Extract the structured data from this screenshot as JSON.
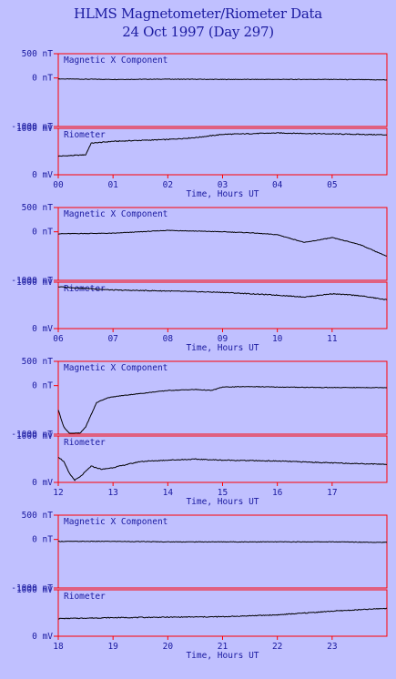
{
  "header": {
    "title": "HLMS Magnetometer/Riometer Data",
    "subtitle": "24 Oct 1997 (Day 297)"
  },
  "colors": {
    "background": "#c0c0ff",
    "frame": "#ff0000",
    "text": "#1a1aa0",
    "trace": "#000000"
  },
  "chart_data": [
    {
      "type": "line",
      "title": "Magnetic X Component",
      "ylim": [
        -1000,
        500
      ],
      "yticks": [
        "500 nT",
        "0 nT",
        "-1000 nT"
      ],
      "xlim": [
        0,
        6
      ],
      "xticks": [
        "00",
        "01",
        "02",
        "03",
        "04",
        "05"
      ],
      "xlabel": "",
      "x": [
        0,
        1,
        2,
        3,
        4,
        5,
        5.99
      ],
      "y": [
        -20,
        -30,
        -25,
        -30,
        -30,
        -30,
        -40
      ]
    },
    {
      "type": "line",
      "title": "Riometer",
      "ylim": [
        0,
        1000
      ],
      "yticks": [
        "1000 mV",
        "0 mV"
      ],
      "xlim": [
        0,
        6
      ],
      "xticks": [
        "00",
        "01",
        "02",
        "03",
        "04",
        "05"
      ],
      "xlabel": "Time, Hours UT",
      "x": [
        0,
        0.5,
        0.6,
        1,
        2,
        2.5,
        3,
        4,
        5,
        5.99
      ],
      "y": [
        400,
        430,
        680,
        720,
        760,
        800,
        870,
        900,
        880,
        860
      ]
    },
    {
      "type": "line",
      "title": "Magnetic X Component",
      "ylim": [
        -1000,
        500
      ],
      "yticks": [
        "500 nT",
        "0 nT",
        "-1000 nT"
      ],
      "xlim": [
        6,
        12
      ],
      "xticks": [
        "06",
        "07",
        "08",
        "09",
        "10",
        "11"
      ],
      "xlabel": "",
      "x": [
        6,
        7,
        8,
        9,
        9.5,
        10,
        10.5,
        11,
        11.5,
        11.99
      ],
      "y": [
        -40,
        -30,
        30,
        0,
        -20,
        -60,
        -220,
        -120,
        -260,
        -500
      ]
    },
    {
      "type": "line",
      "title": "Riometer",
      "ylim": [
        0,
        1000
      ],
      "yticks": [
        "1000 mV",
        "0 mV"
      ],
      "xlim": [
        6,
        12
      ],
      "xticks": [
        "06",
        "07",
        "08",
        "09",
        "10",
        "11"
      ],
      "xlabel": "Time, Hours UT",
      "x": [
        6,
        7,
        8,
        9,
        10,
        10.5,
        11,
        11.5,
        11.99
      ],
      "y": [
        900,
        830,
        810,
        780,
        720,
        680,
        750,
        710,
        620
      ]
    },
    {
      "type": "line",
      "title": "Magnetic X Component",
      "ylim": [
        -1000,
        500
      ],
      "yticks": [
        "500 nT",
        "0 nT",
        "-1000 nT"
      ],
      "xlim": [
        12,
        18
      ],
      "xticks": [
        "12",
        "13",
        "14",
        "15",
        "16",
        "17"
      ],
      "xlabel": "",
      "x": [
        12,
        12.1,
        12.2,
        12.4,
        12.5,
        12.7,
        12.9,
        13.2,
        13.6,
        14,
        14.5,
        14.8,
        15,
        15.5,
        16,
        17,
        17.99
      ],
      "y": [
        -500,
        -850,
        -980,
        -980,
        -850,
        -350,
        -250,
        -200,
        -150,
        -100,
        -80,
        -100,
        -30,
        -20,
        -30,
        -40,
        -40
      ]
    },
    {
      "type": "line",
      "title": "Riometer",
      "ylim": [
        0,
        1000
      ],
      "yticks": [
        "1000 mV",
        "0 mV"
      ],
      "xlim": [
        12,
        18
      ],
      "xticks": [
        "12",
        "13",
        "14",
        "15",
        "16",
        "17"
      ],
      "xlabel": "Time, Hours UT",
      "x": [
        12,
        12.1,
        12.2,
        12.3,
        12.4,
        12.6,
        12.8,
        13,
        13.5,
        14,
        14.5,
        15,
        16,
        17,
        17.99
      ],
      "y": [
        550,
        450,
        200,
        50,
        120,
        350,
        280,
        320,
        450,
        480,
        500,
        480,
        460,
        420,
        390
      ]
    },
    {
      "type": "line",
      "title": "Magnetic X Component",
      "ylim": [
        -1000,
        500
      ],
      "yticks": [
        "500 nT",
        "0 nT",
        "-1000 nT"
      ],
      "xlim": [
        18,
        24
      ],
      "xticks": [
        "18",
        "19",
        "20",
        "21",
        "22",
        "23"
      ],
      "xlabel": "",
      "x": [
        18,
        19,
        20,
        21,
        22,
        23,
        23.99
      ],
      "y": [
        -40,
        -40,
        -50,
        -50,
        -50,
        -50,
        -60
      ]
    },
    {
      "type": "line",
      "title": "Riometer",
      "ylim": [
        0,
        1000
      ],
      "yticks": [
        "1000 mV",
        "0 mV"
      ],
      "xlim": [
        18,
        24
      ],
      "xticks": [
        "18",
        "19",
        "20",
        "21",
        "22",
        "23"
      ],
      "xlabel": "Time, Hours UT",
      "x": [
        18,
        19,
        20,
        21,
        22,
        23,
        23.99
      ],
      "y": [
        380,
        400,
        410,
        420,
        460,
        540,
        600
      ]
    }
  ]
}
